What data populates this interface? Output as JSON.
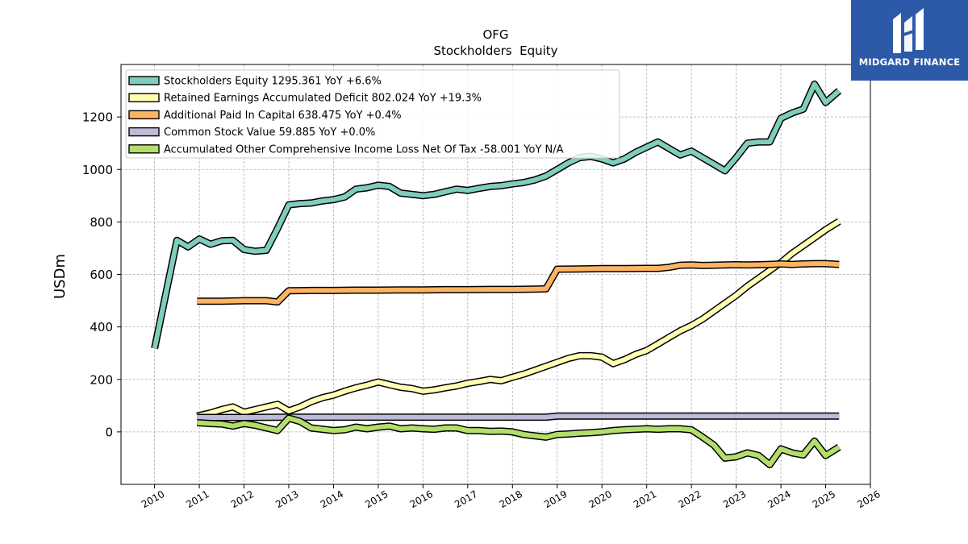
{
  "brand": {
    "name": "MIDGARD FINANCE",
    "bg_color": "#2d5aa8"
  },
  "chart_data": {
    "type": "line",
    "title": "OFG",
    "subtitle": "Stockholders  Equity",
    "ylabel": "USDm",
    "xlabel": "",
    "xlim": [
      2009.25,
      2026
    ],
    "ylim": [
      -200,
      1400
    ],
    "x_ticks": [
      2010,
      2011,
      2012,
      2013,
      2014,
      2015,
      2016,
      2017,
      2018,
      2019,
      2020,
      2021,
      2022,
      2023,
      2024,
      2025,
      2026
    ],
    "y_ticks": [
      0,
      200,
      400,
      600,
      800,
      1000,
      1200
    ],
    "grid": true,
    "legend_position": "top-left",
    "series": [
      {
        "name": "Stockholders Equity  1295.361 YoY +6.6%",
        "color": "#7fcdbb",
        "x": [
          2010.0,
          2010.5,
          2010.75,
          2011.0,
          2011.25,
          2011.5,
          2011.75,
          2012.0,
          2012.25,
          2012.5,
          2012.75,
          2013.0,
          2013.25,
          2013.5,
          2013.75,
          2014.0,
          2014.25,
          2014.5,
          2014.75,
          2015.0,
          2015.25,
          2015.5,
          2015.75,
          2016.0,
          2016.25,
          2016.5,
          2016.75,
          2017.0,
          2017.25,
          2017.5,
          2017.75,
          2018.0,
          2018.25,
          2018.5,
          2018.75,
          2019.0,
          2019.25,
          2019.5,
          2019.75,
          2020.0,
          2020.25,
          2020.5,
          2020.75,
          2021.0,
          2021.25,
          2021.5,
          2021.75,
          2022.0,
          2022.25,
          2022.5,
          2022.75,
          2023.0,
          2023.25,
          2023.5,
          2023.75,
          2024.0,
          2024.25,
          2024.5,
          2024.75,
          2025.0,
          2025.3
        ],
        "values": [
          318,
          730,
          705,
          735,
          715,
          728,
          730,
          695,
          688,
          692,
          775,
          865,
          870,
          872,
          880,
          885,
          895,
          925,
          930,
          940,
          935,
          910,
          905,
          900,
          905,
          915,
          925,
          920,
          928,
          935,
          938,
          945,
          950,
          960,
          975,
          1000,
          1025,
          1045,
          1050,
          1040,
          1025,
          1040,
          1065,
          1085,
          1105,
          1080,
          1055,
          1070,
          1045,
          1020,
          995,
          1045,
          1100,
          1105,
          1105,
          1195,
          1215,
          1230,
          1325,
          1255,
          1300
        ]
      },
      {
        "name": "Retained Earnings Accumulated Deficit  802.024 YoY +19.3%",
        "color": "#ffffb3",
        "x": [
          2010.95,
          2011.25,
          2011.5,
          2011.75,
          2012.0,
          2012.25,
          2012.5,
          2012.75,
          2013.0,
          2013.25,
          2013.5,
          2013.75,
          2014.0,
          2014.25,
          2014.5,
          2014.75,
          2015.0,
          2015.25,
          2015.5,
          2015.75,
          2016.0,
          2016.25,
          2016.5,
          2016.75,
          2017.0,
          2017.25,
          2017.5,
          2017.75,
          2018.0,
          2018.25,
          2018.5,
          2018.75,
          2019.0,
          2019.25,
          2019.5,
          2019.75,
          2020.0,
          2020.25,
          2020.5,
          2020.75,
          2021.0,
          2021.25,
          2021.5,
          2021.75,
          2022.0,
          2022.25,
          2022.5,
          2022.75,
          2023.0,
          2023.25,
          2023.5,
          2023.75,
          2024.0,
          2024.25,
          2024.5,
          2024.75,
          2025.0,
          2025.3
        ],
        "values": [
          60,
          72,
          85,
          95,
          75,
          85,
          95,
          105,
          80,
          95,
          115,
          130,
          140,
          155,
          168,
          178,
          190,
          180,
          170,
          165,
          155,
          160,
          168,
          175,
          185,
          192,
          200,
          195,
          208,
          220,
          235,
          250,
          265,
          280,
          290,
          290,
          285,
          260,
          275,
          295,
          310,
          335,
          360,
          385,
          405,
          430,
          460,
          490,
          520,
          555,
          585,
          615,
          645,
          680,
          710,
          740,
          770,
          802
        ]
      },
      {
        "name": "Additional Paid In Capital  638.475 YoY +0.4%",
        "color": "#fdb462",
        "x": [
          2010.95,
          2011.5,
          2012.0,
          2012.5,
          2012.75,
          2013.0,
          2013.5,
          2014.0,
          2014.5,
          2015.0,
          2015.5,
          2016.0,
          2016.5,
          2017.0,
          2017.5,
          2018.0,
          2018.5,
          2018.75,
          2019.0,
          2019.5,
          2020.0,
          2020.5,
          2021.0,
          2021.25,
          2021.5,
          2021.75,
          2022.0,
          2022.25,
          2022.5,
          2022.75,
          2023.0,
          2023.25,
          2023.5,
          2023.75,
          2024.0,
          2024.25,
          2024.5,
          2024.75,
          2025.0,
          2025.3
        ],
        "values": [
          498,
          498,
          500,
          500,
          495,
          538,
          539,
          539,
          540,
          540,
          541,
          541,
          542,
          542,
          543,
          543,
          544,
          545,
          620,
          621,
          622,
          622,
          623,
          623,
          627,
          635,
          636,
          634,
          635,
          636,
          637,
          636,
          637,
          638,
          640,
          638,
          640,
          641,
          641,
          638
        ]
      },
      {
        "name": "Common Stock Value  59.885 YoY +0.0%",
        "color": "#bebada",
        "x": [
          2010.95,
          2012.0,
          2013.0,
          2014.0,
          2015.0,
          2016.0,
          2017.0,
          2018.0,
          2018.75,
          2019.0,
          2020.0,
          2021.0,
          2022.0,
          2023.0,
          2024.0,
          2025.0,
          2025.3
        ],
        "values": [
          55,
          55,
          56,
          56,
          56,
          56,
          56,
          56,
          56,
          60,
          60,
          60,
          60,
          60,
          60,
          60,
          60
        ]
      },
      {
        "name": "Accumulated Other Comprehensive Income Loss Net Of Tax  -58.001 YoY N/A",
        "color": "#b3de69",
        "x": [
          2010.95,
          2011.25,
          2011.5,
          2011.75,
          2012.0,
          2012.25,
          2012.5,
          2012.75,
          2013.0,
          2013.25,
          2013.5,
          2013.75,
          2014.0,
          2014.25,
          2014.5,
          2014.75,
          2015.0,
          2015.25,
          2015.5,
          2015.75,
          2016.0,
          2016.25,
          2016.5,
          2016.75,
          2017.0,
          2017.25,
          2017.5,
          2017.75,
          2018.0,
          2018.25,
          2018.5,
          2018.75,
          2019.0,
          2019.25,
          2019.5,
          2019.75,
          2020.0,
          2020.25,
          2020.5,
          2020.75,
          2021.0,
          2021.25,
          2021.5,
          2021.75,
          2022.0,
          2022.25,
          2022.5,
          2022.75,
          2023.0,
          2023.25,
          2023.5,
          2023.75,
          2024.0,
          2024.25,
          2024.5,
          2024.75,
          2025.0,
          2025.3
        ],
        "values": [
          35,
          32,
          30,
          22,
          32,
          25,
          15,
          5,
          52,
          40,
          15,
          10,
          5,
          8,
          18,
          12,
          18,
          22,
          12,
          15,
          12,
          10,
          15,
          15,
          5,
          5,
          2,
          3,
          0,
          -10,
          -15,
          -20,
          -10,
          -8,
          -5,
          -3,
          0,
          5,
          8,
          10,
          12,
          10,
          12,
          12,
          8,
          -20,
          -50,
          -100,
          -95,
          -80,
          -90,
          -125,
          -65,
          -80,
          -88,
          -35,
          -90,
          -58
        ]
      }
    ]
  }
}
